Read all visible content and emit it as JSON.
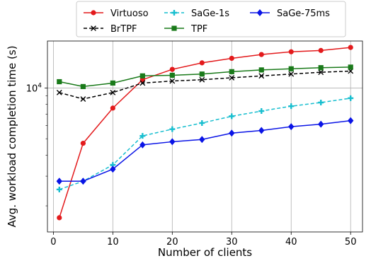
{
  "chart_data": {
    "type": "line",
    "xlabel": "Number of clients",
    "ylabel": "Avg. workload completion time (s)",
    "x": [
      1,
      5,
      10,
      15,
      20,
      25,
      30,
      35,
      40,
      45,
      50
    ],
    "xlim": [
      -1,
      52
    ],
    "xticks": [
      0,
      10,
      20,
      30,
      40,
      50
    ],
    "yscale": "log",
    "ylim": [
      1400,
      19000
    ],
    "yticks": [
      {
        "value": 10000,
        "label": "10",
        "exponent": "4"
      }
    ],
    "grid": true,
    "legend_position": "top",
    "series": [
      {
        "name": "Virtuoso",
        "color": "#e31a1c",
        "linestyle": "solid",
        "marker": "circle",
        "values": [
          1700,
          4700,
          7600,
          11200,
          12900,
          14100,
          15000,
          15800,
          16400,
          16700,
          17400
        ]
      },
      {
        "name": "BrTPF",
        "color": "#000000",
        "linestyle": "dashed",
        "marker": "x",
        "values": [
          9400,
          8600,
          9400,
          10700,
          11000,
          11200,
          11500,
          11800,
          12100,
          12400,
          12600
        ]
      },
      {
        "name": "SaGe-1s",
        "color": "#17becf",
        "linestyle": "dashed",
        "marker": "plus",
        "values": [
          2500,
          2800,
          3500,
          5200,
          5700,
          6200,
          6800,
          7300,
          7800,
          8200,
          8700
        ]
      },
      {
        "name": "TPF",
        "color": "#1a7a1a",
        "linestyle": "solid",
        "marker": "square",
        "values": [
          10900,
          10200,
          10700,
          11800,
          11900,
          12100,
          12500,
          12800,
          13000,
          13200,
          13300
        ]
      },
      {
        "name": "SaGe-75ms",
        "color": "#0a14e6",
        "linestyle": "solid",
        "marker": "diamond",
        "values": [
          2800,
          2800,
          3300,
          4600,
          4800,
          4950,
          5400,
          5600,
          5900,
          6100,
          6400
        ]
      }
    ]
  }
}
